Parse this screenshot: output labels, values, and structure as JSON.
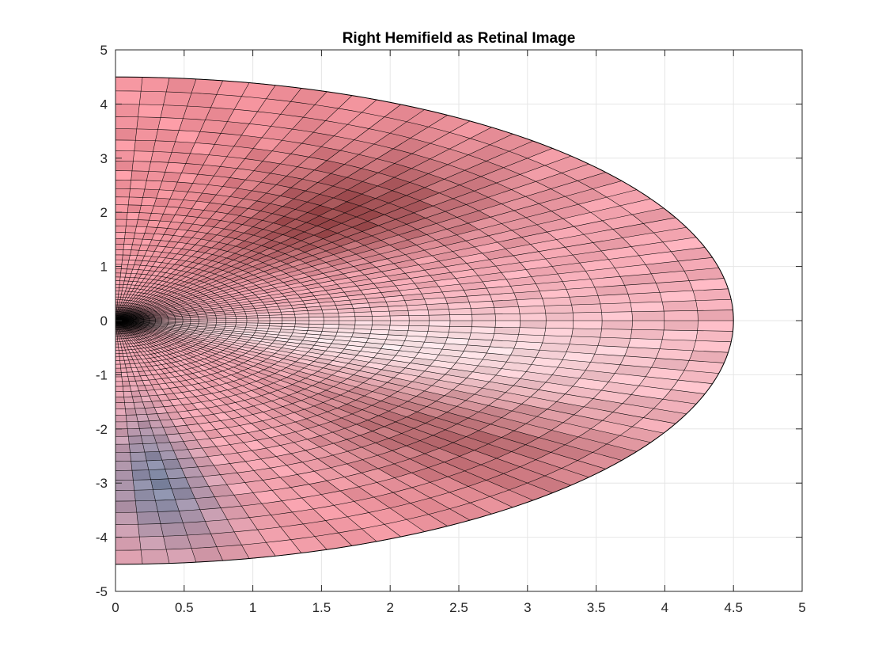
{
  "chart_data": {
    "type": "heatmap",
    "title": "Right Hemifield as Retinal Image",
    "xlabel": "",
    "ylabel": "",
    "xlim": [
      0,
      5
    ],
    "ylim": [
      -5,
      5
    ],
    "xticks": [
      "0",
      "0.5",
      "1",
      "1.5",
      "2",
      "2.5",
      "3",
      "3.5",
      "4",
      "4.5",
      "5"
    ],
    "yticks": [
      "5",
      "4",
      "3",
      "2",
      "1",
      "0",
      "-1",
      "-2",
      "-3",
      "-4",
      "-5"
    ],
    "grid": true,
    "mesh": {
      "shape": "half-ellipse",
      "center": [
        0,
        0
      ],
      "radius_x": 4.5,
      "radius_y": 4.5,
      "angle_range_deg": [
        -90,
        90
      ]
    },
    "colors": {
      "base_pink": "#f5a8b4",
      "coral": "#ee7e86",
      "light_center": "#fbeef0",
      "dark_band": "#7a2c2c",
      "blue_patch": "#5a7fa0",
      "fovea": "#000000"
    }
  }
}
